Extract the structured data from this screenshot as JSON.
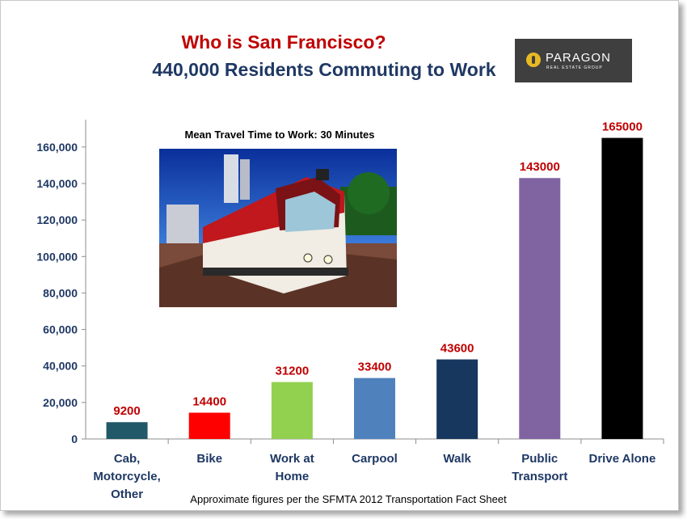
{
  "title_line1": "Who is San Francisco?",
  "title_line2": "440,000 Residents Commuting to Work",
  "logo": {
    "name": "PARAGON",
    "subtitle": "REAL ESTATE GROUP"
  },
  "photo_caption": "Mean Travel Time to Work: 30 Minutes",
  "footnote": "Approximate figures per the SFMTA 2012 Transportation Fact Sheet",
  "chart_data": {
    "type": "bar",
    "categories": [
      [
        "Cab,",
        "Motorcycle,",
        "Other"
      ],
      [
        "Bike"
      ],
      [
        "Work at",
        "Home"
      ],
      [
        "Carpool"
      ],
      [
        "Walk"
      ],
      [
        "Public",
        "Transport"
      ],
      [
        "Drive Alone"
      ]
    ],
    "values": [
      9200,
      14400,
      31200,
      33400,
      43600,
      143000,
      165000
    ],
    "data_labels": [
      "9200",
      "14400",
      "31200",
      "33400",
      "43600",
      "143000",
      "165000"
    ],
    "colors": [
      "#215968",
      "#ff0000",
      "#92d050",
      "#4f81bd",
      "#17375e",
      "#8064a2",
      "#000000"
    ],
    "ylim": [
      0,
      175000
    ],
    "yticks": [
      0,
      20000,
      40000,
      60000,
      80000,
      100000,
      120000,
      140000,
      160000
    ],
    "ytick_labels": [
      "0",
      "20,000",
      "40,000",
      "60,000",
      "80,000",
      "100,000",
      "120,000",
      "140,000",
      "160,000"
    ],
    "grid": false,
    "title": "",
    "xlabel": "",
    "ylabel": ""
  }
}
